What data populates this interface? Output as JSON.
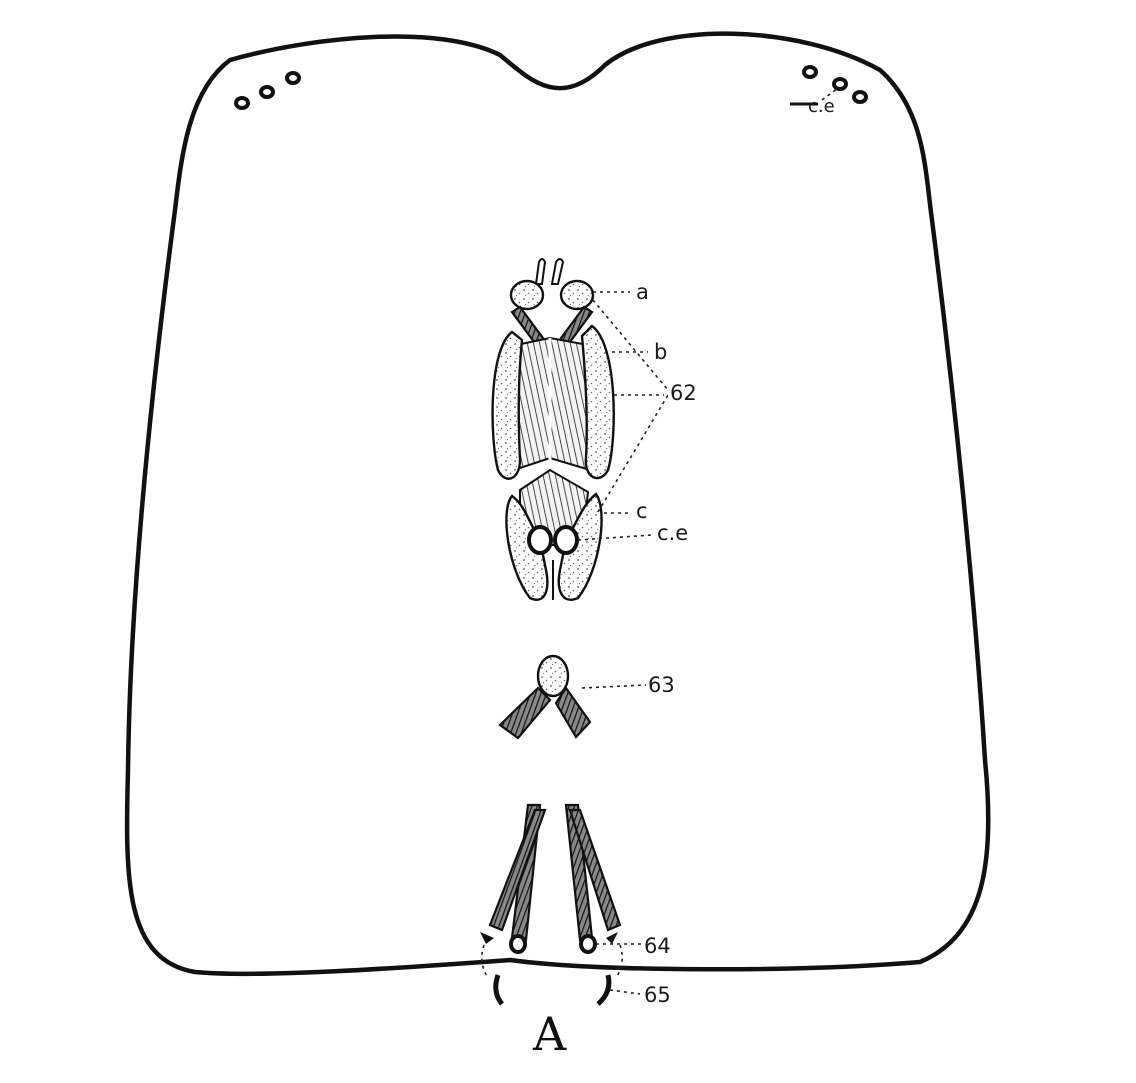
{
  "figure": {
    "caption": "A",
    "labels": {
      "ce_top": "c.e",
      "a": "a",
      "b": "b",
      "n62": "62",
      "c": "c",
      "ce": "c.e",
      "n63": "63",
      "n64": "64",
      "n65": "65"
    }
  },
  "colors": {
    "ink": "#111111",
    "background": "#ffffff"
  }
}
